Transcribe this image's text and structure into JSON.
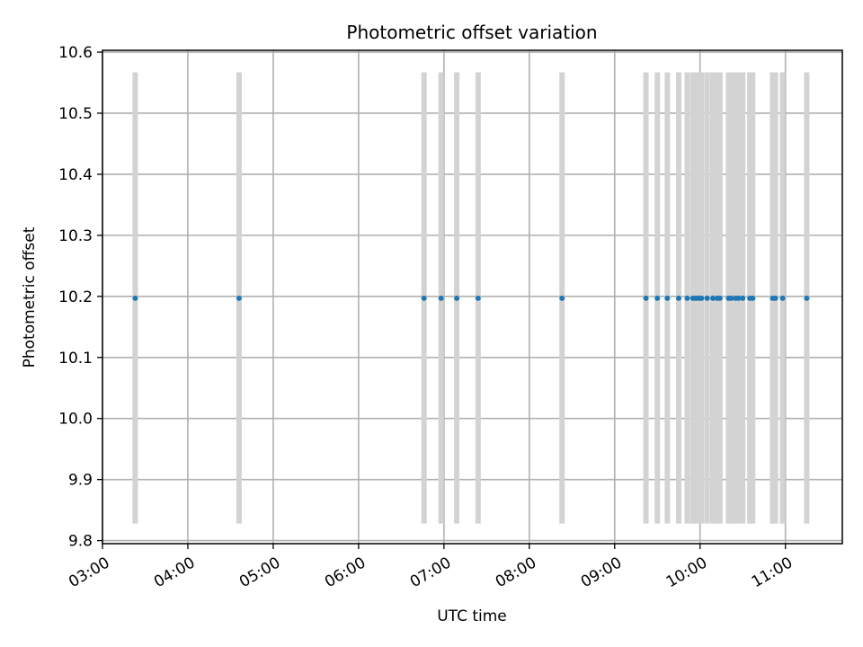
{
  "chart_data": {
    "type": "scatter",
    "title": "Photometric offset variation",
    "xlabel": "UTC time",
    "ylabel": "Photometric offset",
    "grid": true,
    "xlim": [
      "03:00",
      "11:40"
    ],
    "ylim": [
      9.795,
      10.603
    ],
    "xticks": [
      "03:00",
      "04:00",
      "05:00",
      "06:00",
      "07:00",
      "08:00",
      "09:00",
      "10:00",
      "11:00"
    ],
    "yticks": [
      9.8,
      9.9,
      10.0,
      10.1,
      10.2,
      10.3,
      10.4,
      10.5,
      10.6
    ],
    "ytick_labels": [
      "9.8",
      "9.9",
      "10.0",
      "10.1",
      "10.2",
      "10.3",
      "10.4",
      "10.5",
      "10.6"
    ],
    "error_bar_color": "#d3d3d3",
    "marker_color": "#1f77b4",
    "points": [
      {
        "x": "03:23",
        "y": 10.197,
        "ylow": 9.828,
        "yhigh": 10.567
      },
      {
        "x": "04:36",
        "y": 10.197,
        "ylow": 9.828,
        "yhigh": 10.567
      },
      {
        "x": "06:46",
        "y": 10.197,
        "ylow": 9.828,
        "yhigh": 10.567
      },
      {
        "x": "06:58",
        "y": 10.197,
        "ylow": 9.828,
        "yhigh": 10.567
      },
      {
        "x": "07:09",
        "y": 10.197,
        "ylow": 9.828,
        "yhigh": 10.567
      },
      {
        "x": "07:24",
        "y": 10.197,
        "ylow": 9.828,
        "yhigh": 10.567
      },
      {
        "x": "08:23",
        "y": 10.197,
        "ylow": 9.828,
        "yhigh": 10.567
      },
      {
        "x": "09:22",
        "y": 10.197,
        "ylow": 9.828,
        "yhigh": 10.567
      },
      {
        "x": "09:30",
        "y": 10.197,
        "ylow": 9.828,
        "yhigh": 10.567
      },
      {
        "x": "09:37",
        "y": 10.197,
        "ylow": 9.828,
        "yhigh": 10.567
      },
      {
        "x": "09:45",
        "y": 10.197,
        "ylow": 9.828,
        "yhigh": 10.567
      },
      {
        "x": "09:51",
        "y": 10.197,
        "ylow": 9.828,
        "yhigh": 10.567
      },
      {
        "x": "09:55",
        "y": 10.197,
        "ylow": 9.828,
        "yhigh": 10.567
      },
      {
        "x": "09:57",
        "y": 10.197,
        "ylow": 9.828,
        "yhigh": 10.567
      },
      {
        "x": "09:59",
        "y": 10.197,
        "ylow": 9.828,
        "yhigh": 10.567
      },
      {
        "x": "10:01",
        "y": 10.197,
        "ylow": 9.828,
        "yhigh": 10.567
      },
      {
        "x": "10:05",
        "y": 10.197,
        "ylow": 9.828,
        "yhigh": 10.567
      },
      {
        "x": "10:09",
        "y": 10.197,
        "ylow": 9.828,
        "yhigh": 10.567
      },
      {
        "x": "10:12",
        "y": 10.197,
        "ylow": 9.828,
        "yhigh": 10.567
      },
      {
        "x": "10:14",
        "y": 10.197,
        "ylow": 9.828,
        "yhigh": 10.567
      },
      {
        "x": "10:20",
        "y": 10.197,
        "ylow": 9.828,
        "yhigh": 10.567
      },
      {
        "x": "10:22",
        "y": 10.197,
        "ylow": 9.828,
        "yhigh": 10.567
      },
      {
        "x": "10:25",
        "y": 10.197,
        "ylow": 9.828,
        "yhigh": 10.567
      },
      {
        "x": "10:27",
        "y": 10.197,
        "ylow": 9.828,
        "yhigh": 10.567
      },
      {
        "x": "10:30",
        "y": 10.197,
        "ylow": 9.828,
        "yhigh": 10.567
      },
      {
        "x": "10:35",
        "y": 10.197,
        "ylow": 9.828,
        "yhigh": 10.567
      },
      {
        "x": "10:37",
        "y": 10.197,
        "ylow": 9.828,
        "yhigh": 10.567
      },
      {
        "x": "10:51",
        "y": 10.197,
        "ylow": 9.828,
        "yhigh": 10.567
      },
      {
        "x": "10:53",
        "y": 10.197,
        "ylow": 9.828,
        "yhigh": 10.567
      },
      {
        "x": "10:58",
        "y": 10.197,
        "ylow": 9.828,
        "yhigh": 10.567
      },
      {
        "x": "11:15",
        "y": 10.197,
        "ylow": 9.828,
        "yhigh": 10.567
      }
    ]
  }
}
